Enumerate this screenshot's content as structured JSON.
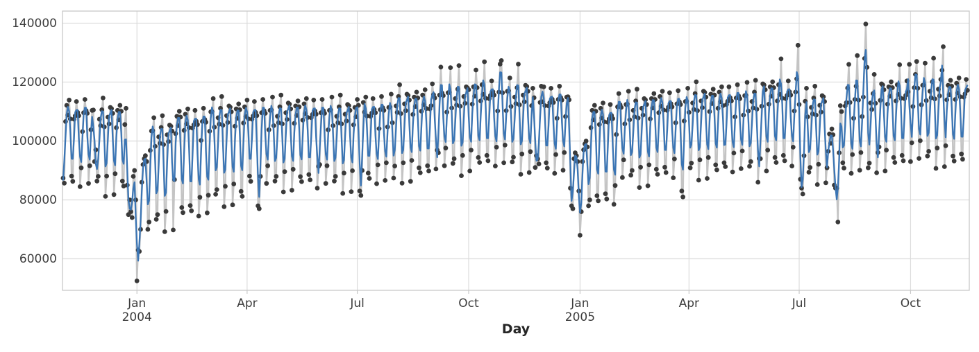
{
  "chart_data": {
    "type": "line+scatter",
    "title": "",
    "xlabel": "Day",
    "ylabel": "",
    "grid": true,
    "legend": "none",
    "x_unit": "day",
    "x_start_date": "2003-11-01",
    "x_end_date": "2005-11-17",
    "y_ticks": [
      60000,
      80000,
      100000,
      120000,
      140000
    ],
    "y_tick_labels": [
      "60000",
      "80000",
      "100000",
      "120000",
      "140000"
    ],
    "ylim": [
      49300,
      144100
    ],
    "x_ticks": [
      {
        "label": "Jan",
        "year": "2004",
        "day_index": 61
      },
      {
        "label": "Apr",
        "year": "",
        "day_index": 152
      },
      {
        "label": "Jul",
        "year": "",
        "day_index": 243
      },
      {
        "label": "Oct",
        "year": "",
        "day_index": 335
      },
      {
        "label": "Jan",
        "year": "2005",
        "day_index": 427
      },
      {
        "label": "Apr",
        "year": "",
        "day_index": 517
      },
      {
        "label": "Jul",
        "year": "",
        "day_index": 608
      },
      {
        "label": "Oct",
        "year": "",
        "day_index": 700
      }
    ],
    "colors": {
      "raw_line": "#c4c4c4",
      "marker": "#3a3a3a",
      "smoothed_line": "#3b75b4",
      "grid": "#dcdcdc",
      "spine": "#c8c8c8",
      "tick_text": "#3d3d3d"
    },
    "smoothing": {
      "method": "rolling_mean",
      "window": 3,
      "center": true
    },
    "series": {
      "raw_daily_values": [
        87400,
        85700,
        106600,
        112100,
        108800,
        113900,
        107500,
        88100,
        86300,
        107400,
        108500,
        113400,
        109700,
        108600,
        84500,
        90900,
        103200,
        109600,
        114100,
        110300,
        109400,
        85600,
        91600,
        103800,
        110400,
        110500,
        93000,
        97000,
        86400,
        88000,
        107400,
        105200,
        110600,
        114600,
        104800,
        81200,
        88100,
        108100,
        105800,
        111400,
        111000,
        109400,
        81800,
        88900,
        104500,
        110400,
        107200,
        112100,
        110100,
        86400,
        84700,
        105600,
        111100,
        85000,
        75000,
        80000,
        76000,
        74000,
        88000,
        90000,
        80000,
        52500,
        63000,
        62500,
        70000,
        86000,
        92000,
        94000,
        95000,
        93000,
        70000,
        72500,
        96800,
        103400,
        103500,
        107900,
        98200,
        73400,
        75000,
        101400,
        99200,
        104600,
        108600,
        98800,
        69200,
        76100,
        102100,
        99800,
        105400,
        105000,
        103400,
        69800,
        86900,
        102500,
        108400,
        105200,
        110100,
        108100,
        77400,
        75700,
        103600,
        109100,
        105800,
        110900,
        104500,
        78100,
        76300,
        104400,
        105500,
        110400,
        106700,
        105600,
        74500,
        80900,
        100200,
        106600,
        111100,
        107300,
        106400,
        75600,
        81600,
        103300,
        109900,
        110000,
        114400,
        104700,
        81900,
        83500,
        107900,
        105700,
        111100,
        115100,
        105300,
        77700,
        84600,
        108600,
        106300,
        111900,
        111500,
        109900,
        78300,
        85400,
        105000,
        110900,
        107700,
        112600,
        110600,
        82900,
        81200,
        106100,
        111600,
        108300,
        113900,
        107500,
        88100,
        86300,
        107400,
        108500,
        113400,
        109700,
        108600,
        78000,
        77000,
        88000,
        109600,
        114100,
        110300,
        109400,
        85600,
        91600,
        103800,
        110400,
        110500,
        114900,
        105200,
        86400,
        88000,
        108400,
        106200,
        111600,
        115600,
        105800,
        82700,
        89600,
        109600,
        107300,
        112900,
        112500,
        110900,
        83300,
        90400,
        106000,
        111900,
        108700,
        113600,
        111600,
        87900,
        86200,
        107100,
        112600,
        109300,
        114400,
        108000,
        88600,
        86800,
        107900,
        109000,
        113900,
        110200,
        109100,
        84000,
        91400,
        92000,
        109600,
        114100,
        110300,
        109400,
        85600,
        91600,
        103800,
        110400,
        110500,
        114900,
        105200,
        86400,
        88000,
        108400,
        106200,
        111600,
        115600,
        105800,
        82200,
        89100,
        109100,
        106800,
        112400,
        112000,
        110400,
        82800,
        89900,
        105500,
        111400,
        108200,
        114100,
        112100,
        83000,
        81500,
        90000,
        113100,
        109800,
        114900,
        108500,
        89100,
        87300,
        108400,
        109500,
        114400,
        110700,
        109600,
        85500,
        91900,
        104200,
        110600,
        115100,
        111300,
        110400,
        86600,
        92600,
        104800,
        111400,
        111500,
        115900,
        106200,
        87400,
        91500,
        111900,
        109700,
        115100,
        119100,
        109300,
        85700,
        92600,
        112600,
        110300,
        115900,
        115500,
        113900,
        86300,
        93400,
        109000,
        114900,
        111700,
        116600,
        114600,
        90900,
        89200,
        110100,
        115600,
        112300,
        117400,
        111000,
        91600,
        89800,
        110900,
        112000,
        119400,
        115700,
        114600,
        90500,
        96900,
        96000,
        115600,
        125100,
        116300,
        115400,
        91600,
        97600,
        109800,
        116400,
        116500,
        124900,
        111200,
        92400,
        94000,
        114400,
        112200,
        117600,
        125600,
        111800,
        88200,
        95100,
        115100,
        112800,
        118400,
        118000,
        117400,
        89800,
        96900,
        112500,
        118400,
        115200,
        124100,
        118100,
        94400,
        92700,
        113600,
        119100,
        115800,
        126900,
        114500,
        95100,
        93300,
        114400,
        115500,
        120400,
        116700,
        115600,
        91500,
        97900,
        110200,
        116600,
        126100,
        127300,
        116400,
        92600,
        98600,
        110300,
        116900,
        117000,
        121400,
        111700,
        92900,
        94500,
        114900,
        112700,
        118100,
        126100,
        112300,
        88700,
        95600,
        115600,
        113300,
        118900,
        118500,
        116900,
        89300,
        96400,
        112000,
        117900,
        114700,
        91000,
        95000,
        93900,
        92200,
        113100,
        118600,
        113300,
        118400,
        112000,
        92600,
        90800,
        111900,
        113000,
        117900,
        114200,
        113100,
        89000,
        95400,
        107700,
        114100,
        118600,
        114800,
        113900,
        90100,
        96100,
        108300,
        114900,
        115000,
        114000,
        84000,
        78000,
        77000,
        94000,
        96000,
        95000,
        93000,
        83000,
        68000,
        76000,
        93000,
        97000,
        99000,
        100000,
        98000,
        78000,
        80000,
        104500,
        110400,
        107200,
        112100,
        110100,
        81400,
        79700,
        105600,
        111100,
        107800,
        112900,
        106500,
        82100,
        80300,
        106400,
        107500,
        112400,
        108700,
        107600,
        78500,
        84900,
        102200,
        111600,
        116100,
        112300,
        111400,
        87600,
        93600,
        105800,
        112400,
        112500,
        116900,
        107200,
        88400,
        90000,
        110400,
        108200,
        113600,
        117600,
        107800,
        84200,
        91100,
        111100,
        108800,
        114400,
        114000,
        112400,
        84800,
        91900,
        107500,
        114400,
        111200,
        116100,
        114100,
        90400,
        88700,
        109600,
        115100,
        111800,
        116900,
        110500,
        91100,
        89300,
        110400,
        111500,
        116400,
        112700,
        111600,
        87500,
        93900,
        106200,
        112600,
        117100,
        113300,
        112400,
        83000,
        81000,
        106800,
        113400,
        113500,
        117900,
        109700,
        90900,
        92500,
        112900,
        110700,
        116100,
        120100,
        110300,
        86700,
        93600,
        113600,
        111300,
        116900,
        116500,
        114900,
        87300,
        94400,
        110000,
        115900,
        112700,
        117600,
        115600,
        91900,
        90200,
        111100,
        116600,
        113300,
        118400,
        112000,
        92600,
        91300,
        112400,
        113500,
        118400,
        114700,
        113600,
        89500,
        95900,
        108200,
        114600,
        119100,
        115300,
        114400,
        90600,
        96600,
        108800,
        115400,
        115500,
        119900,
        110200,
        91400,
        93000,
        113400,
        111200,
        116600,
        120600,
        110800,
        86000,
        94100,
        94000,
        111800,
        119400,
        119000,
        117400,
        89800,
        96900,
        112500,
        118400,
        115200,
        120100,
        118100,
        94400,
        92700,
        113600,
        119100,
        115800,
        127900,
        114500,
        95100,
        93300,
        114400,
        115500,
        120400,
        116700,
        115600,
        91500,
        97900,
        110200,
        116600,
        121100,
        132500,
        112400,
        87000,
        84000,
        82000,
        95000,
        113500,
        117900,
        108200,
        89400,
        91000,
        111400,
        109200,
        114600,
        118600,
        108800,
        85200,
        92100,
        112100,
        109800,
        115400,
        115000,
        113400,
        85800,
        90900,
        96500,
        102400,
        99200,
        104100,
        102100,
        85000,
        84000,
        84000,
        72500,
        96000,
        112000,
        110000,
        92600,
        90800,
        111900,
        113000,
        118000,
        126000,
        113100,
        89000,
        95400,
        107700,
        114100,
        118600,
        129000,
        113900,
        90100,
        96100,
        108300,
        114900,
        128000,
        139700,
        125000,
        90900,
        92500,
        112900,
        110700,
        116100,
        122600,
        112800,
        89200,
        96100,
        98000,
        113800,
        119400,
        119000,
        117400,
        89800,
        96900,
        112500,
        118400,
        115200,
        120100,
        118100,
        94400,
        92700,
        113600,
        119100,
        115800,
        125900,
        114500,
        95100,
        93300,
        114400,
        115500,
        120400,
        116700,
        126000,
        93000,
        99400,
        111700,
        118100,
        122600,
        127000,
        117900,
        94100,
        100100,
        112300,
        118900,
        119000,
        126400,
        113700,
        94900,
        96500,
        116900,
        114700,
        120100,
        128100,
        114300,
        90700,
        97600,
        117600,
        115300,
        120900,
        124000,
        132000,
        91300,
        98400,
        114000,
        118900,
        115700,
        120600,
        118600,
        94900,
        93200,
        114100,
        119600,
        116300,
        121400,
        115000,
        95600,
        93800,
        114900,
        116000,
        120900,
        117200
      ]
    }
  }
}
